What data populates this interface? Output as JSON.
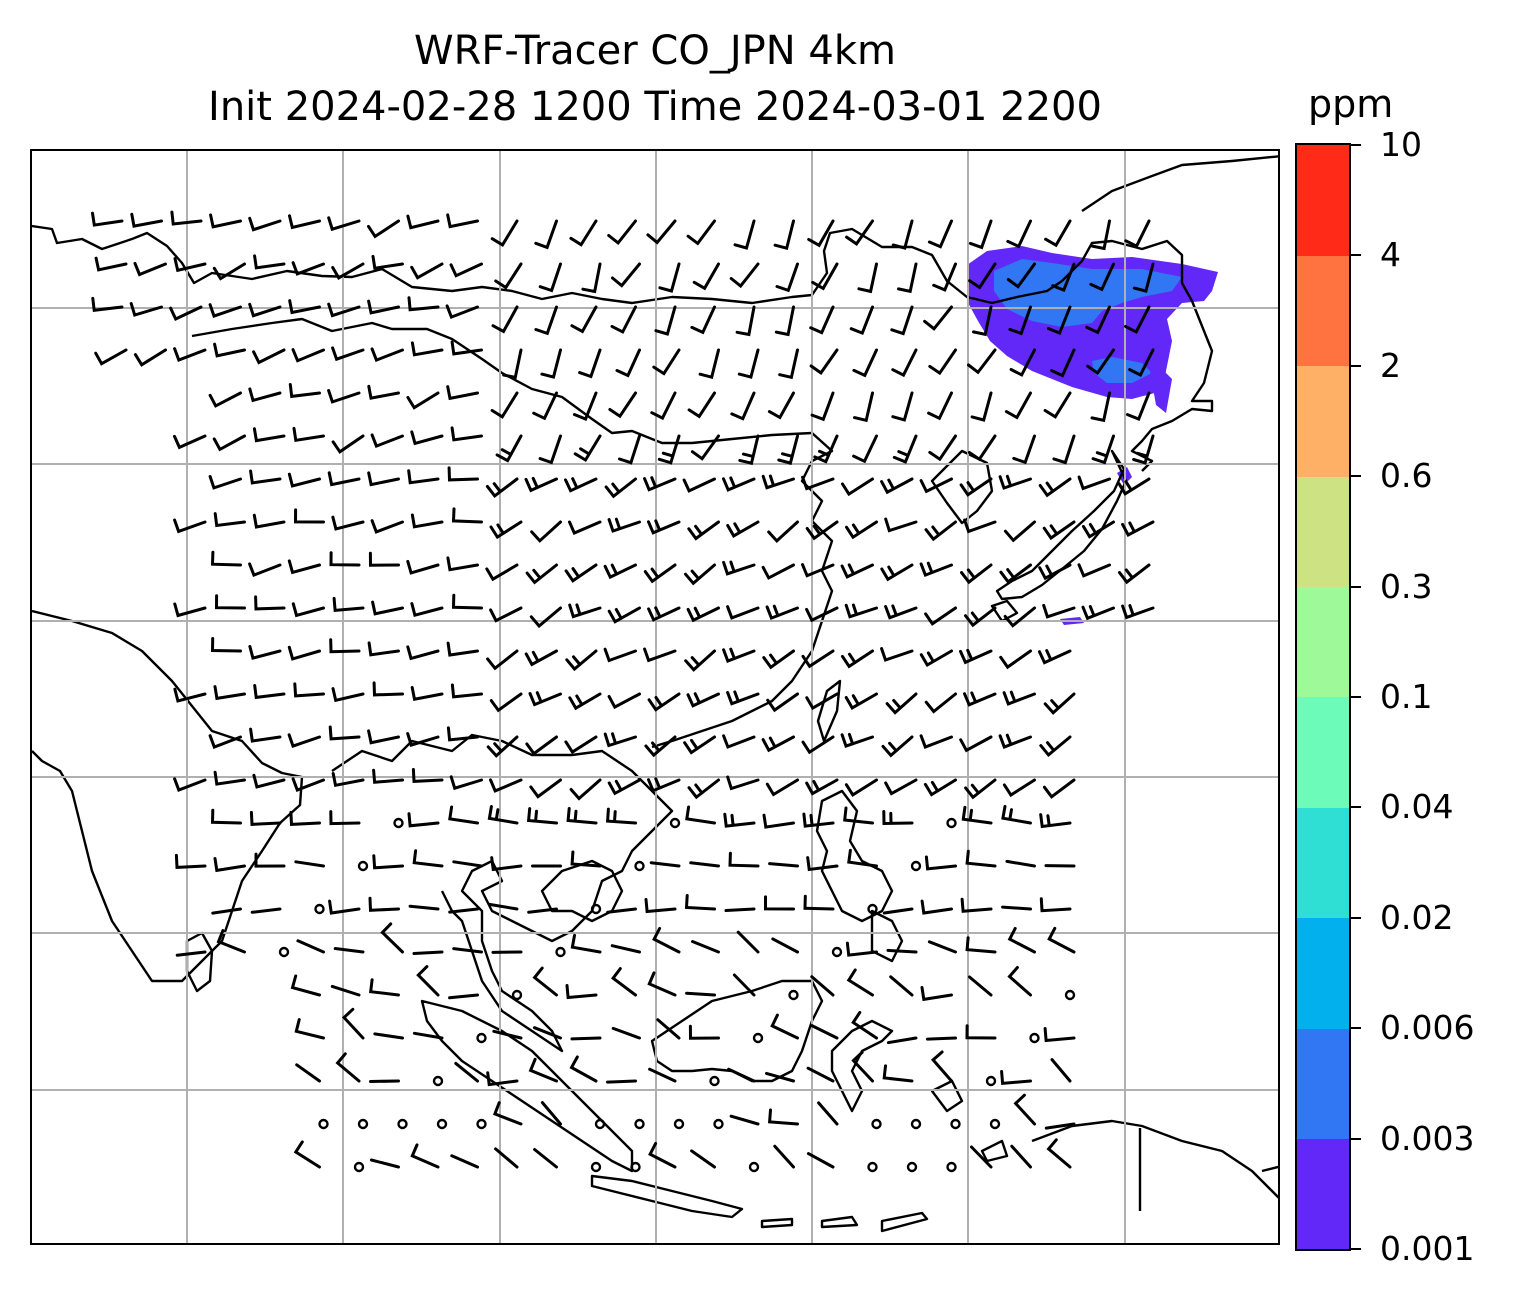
{
  "map": {
    "title_line1": "WRF-Tracer CO_JPN 4km",
    "title_line2": "Init 2024-02-28 1200 Time 2024-03-01 2200",
    "colorbar": {
      "units": "ppm",
      "tick_labels": [
        "0.001",
        "0.003",
        "0.006",
        "0.02",
        "0.04",
        "0.1",
        "0.3",
        "0.6",
        "2",
        "4",
        "10"
      ],
      "colors": [
        "#6228f8",
        "#3176f3",
        "#03b0ee",
        "#2fdfd4",
        "#6cfbb9",
        "#9efa98",
        "#cde283",
        "#ffb067",
        "#ff7341",
        "#ff2b18"
      ]
    },
    "gridlines": "on",
    "wind_barbs": "shown",
    "tracer_plume_color": "#6228f8",
    "plume_core_color": "#3176f3"
  }
}
